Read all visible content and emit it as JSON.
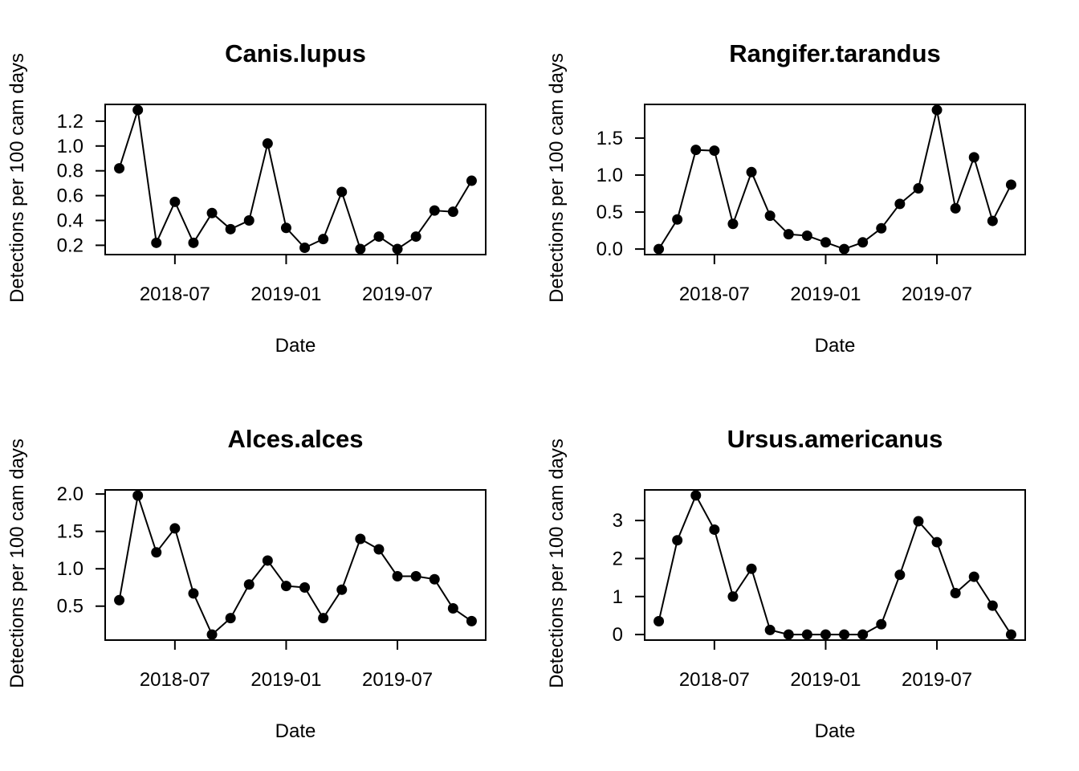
{
  "chart_data": [
    {
      "type": "line",
      "title": "Canis.lupus",
      "xlabel": "Date",
      "ylabel": "Detections per 100 cam days",
      "x": [
        "2018-04",
        "2018-05",
        "2018-06",
        "2018-07",
        "2018-08",
        "2018-09",
        "2018-10",
        "2018-11",
        "2018-12",
        "2019-01",
        "2019-02",
        "2019-03",
        "2019-04",
        "2019-05",
        "2019-06",
        "2019-07",
        "2019-08",
        "2019-09",
        "2019-10",
        "2019-11"
      ],
      "values": [
        0.82,
        1.29,
        0.22,
        0.55,
        0.22,
        0.46,
        0.33,
        0.4,
        1.02,
        0.34,
        0.18,
        0.25,
        0.63,
        0.17,
        0.27,
        0.17,
        0.27,
        0.48,
        0.47,
        0.72
      ],
      "xticks": [
        "2018-07",
        "2019-01",
        "2019-07"
      ],
      "yticks": [
        "0.2",
        "0.4",
        "0.6",
        "0.8",
        "1.0",
        "1.2"
      ],
      "ylim": [
        0.125,
        1.335
      ],
      "grid": false
    },
    {
      "type": "line",
      "title": "Rangifer.tarandus",
      "xlabel": "Date",
      "ylabel": "Detections per 100 cam days",
      "x": [
        "2018-04",
        "2018-05",
        "2018-06",
        "2018-07",
        "2018-08",
        "2018-09",
        "2018-10",
        "2018-11",
        "2018-12",
        "2019-01",
        "2019-02",
        "2019-03",
        "2019-04",
        "2019-05",
        "2019-06",
        "2019-07",
        "2019-08",
        "2019-09",
        "2019-10",
        "2019-11"
      ],
      "values": [
        0.0,
        0.4,
        1.34,
        1.33,
        0.34,
        1.04,
        0.45,
        0.2,
        0.18,
        0.09,
        0.0,
        0.09,
        0.28,
        0.61,
        0.82,
        1.88,
        0.55,
        1.24,
        0.38,
        0.87
      ],
      "xticks": [
        "2018-07",
        "2019-01",
        "2019-07"
      ],
      "yticks": [
        "0.0",
        "0.5",
        "1.0",
        "1.5"
      ],
      "ylim": [
        -0.075,
        1.955
      ],
      "grid": false
    },
    {
      "type": "line",
      "title": "Alces.alces",
      "xlabel": "Date",
      "ylabel": "Detections per 100 cam days",
      "x": [
        "2018-04",
        "2018-05",
        "2018-06",
        "2018-07",
        "2018-08",
        "2018-09",
        "2018-10",
        "2018-11",
        "2018-12",
        "2019-01",
        "2019-02",
        "2019-03",
        "2019-04",
        "2019-05",
        "2019-06",
        "2019-07",
        "2019-08",
        "2019-09",
        "2019-10",
        "2019-11"
      ],
      "values": [
        0.58,
        1.98,
        1.22,
        1.54,
        0.67,
        0.12,
        0.34,
        0.79,
        1.11,
        0.77,
        0.75,
        0.34,
        0.72,
        1.4,
        1.26,
        0.9,
        0.9,
        0.86,
        0.47,
        0.3
      ],
      "xticks": [
        "2018-07",
        "2019-01",
        "2019-07"
      ],
      "yticks": [
        "0.5",
        "1.0",
        "1.5",
        "2.0"
      ],
      "ylim": [
        0.046,
        2.055
      ],
      "grid": false
    },
    {
      "type": "line",
      "title": "Ursus.americanus",
      "xlabel": "Date",
      "ylabel": "Detections per 100 cam days",
      "x": [
        "2018-04",
        "2018-05",
        "2018-06",
        "2018-07",
        "2018-08",
        "2018-09",
        "2018-10",
        "2018-11",
        "2018-12",
        "2019-01",
        "2019-02",
        "2019-03",
        "2019-04",
        "2019-05",
        "2019-06",
        "2019-07",
        "2019-08",
        "2019-09",
        "2019-10",
        "2019-11"
      ],
      "values": [
        0.35,
        2.48,
        3.66,
        2.76,
        1.0,
        1.73,
        0.12,
        0.0,
        0.0,
        0.0,
        0.0,
        0.0,
        0.27,
        1.57,
        2.98,
        2.43,
        1.09,
        1.52,
        0.76,
        0.0
      ],
      "xticks": [
        "2018-07",
        "2019-01",
        "2019-07"
      ],
      "yticks": [
        "0",
        "1",
        "2",
        "3"
      ],
      "ylim": [
        -0.146,
        3.805
      ],
      "grid": false
    }
  ]
}
